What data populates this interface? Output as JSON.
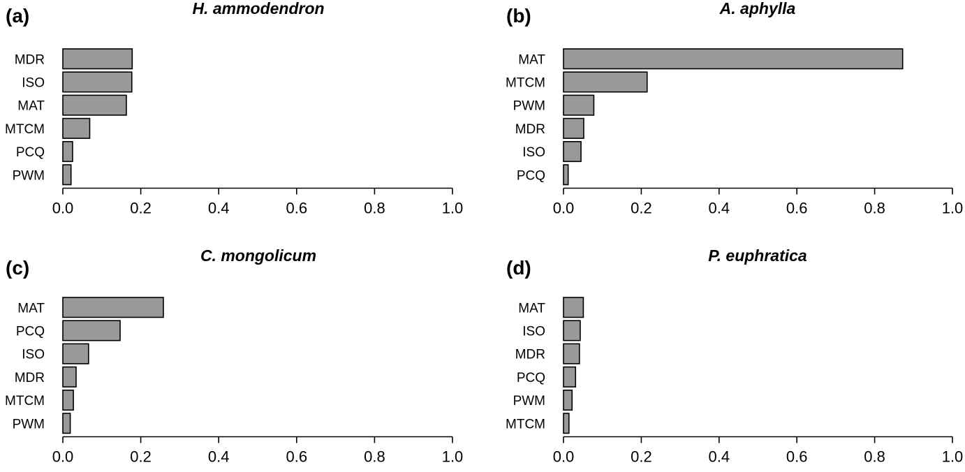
{
  "chart_data": [
    {
      "panel_label": "(a)",
      "title": "H. ammodendron",
      "type": "bar",
      "orientation": "horizontal",
      "categories": [
        "MDR",
        "ISO",
        "MAT",
        "MTCM",
        "PCQ",
        "PWM"
      ],
      "values": [
        0.178,
        0.177,
        0.163,
        0.069,
        0.025,
        0.021
      ],
      "xlim": [
        0,
        1
      ],
      "xticks": [
        "0.0",
        "0.2",
        "0.4",
        "0.6",
        "0.8",
        "1.0"
      ],
      "bar_color": "#999999"
    },
    {
      "panel_label": "(b)",
      "title": "A. aphylla",
      "type": "bar",
      "orientation": "horizontal",
      "categories": [
        "MAT",
        "MTCM",
        "PWM",
        "MDR",
        "ISO",
        "PCQ"
      ],
      "values": [
        0.872,
        0.215,
        0.078,
        0.052,
        0.045,
        0.012
      ],
      "xlim": [
        0,
        1
      ],
      "xticks": [
        "0.0",
        "0.2",
        "0.4",
        "0.6",
        "0.8",
        "1.0"
      ],
      "bar_color": "#999999"
    },
    {
      "panel_label": "(c)",
      "title": "C. mongolicum",
      "type": "bar",
      "orientation": "horizontal",
      "categories": [
        "MAT",
        "PCQ",
        "ISO",
        "MDR",
        "MTCM",
        "PWM"
      ],
      "values": [
        0.258,
        0.147,
        0.066,
        0.034,
        0.027,
        0.019
      ],
      "xlim": [
        0,
        1
      ],
      "xticks": [
        "0.0",
        "0.2",
        "0.4",
        "0.6",
        "0.8",
        "1.0"
      ],
      "bar_color": "#999999"
    },
    {
      "panel_label": "(d)",
      "title": "P. euphratica",
      "type": "bar",
      "orientation": "horizontal",
      "categories": [
        "MAT",
        "ISO",
        "MDR",
        "PCQ",
        "PWM",
        "MTCM"
      ],
      "values": [
        0.051,
        0.043,
        0.041,
        0.031,
        0.022,
        0.014
      ],
      "xlim": [
        0,
        1
      ],
      "xticks": [
        "0.0",
        "0.2",
        "0.4",
        "0.6",
        "0.8",
        "1.0"
      ],
      "bar_color": "#999999"
    }
  ]
}
